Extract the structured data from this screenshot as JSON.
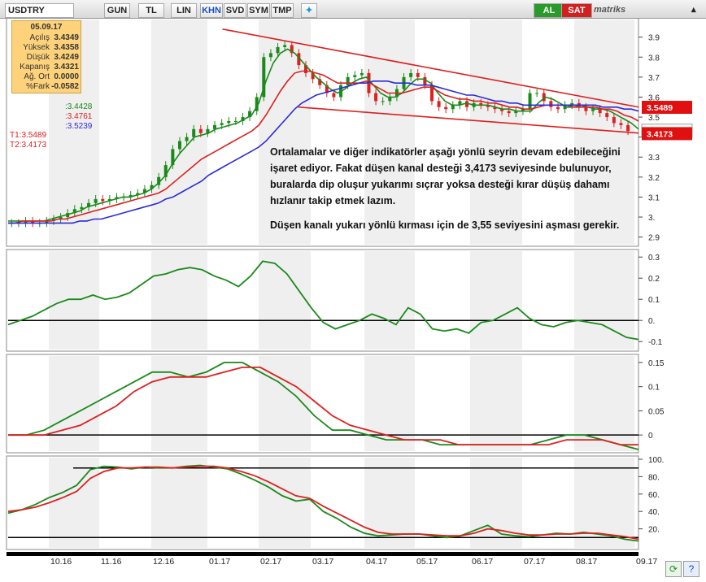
{
  "toolbar": {
    "symbol": "USDTRY",
    "buttons": [
      "GUN",
      "TL",
      "LIN",
      "KHN",
      "SVD",
      "SYM",
      "TMP"
    ],
    "active_button": "KHN",
    "buy_label": "AL",
    "sell_label": "SAT",
    "brand": "matriks"
  },
  "info_box": {
    "date": "05.09.17",
    "rows": [
      {
        "k": "Açılış",
        "v": "3.4349"
      },
      {
        "k": "Yüksek",
        "v": "3.4358"
      },
      {
        "k": "Düşük",
        "v": "3.4249"
      },
      {
        "k": "Kapanış",
        "v": "3.4321"
      },
      {
        "k": "Ağ. Ort",
        "v": "0.0000"
      },
      {
        "k": "%Fark",
        "v": "-0.0582"
      }
    ]
  },
  "ma_legend": [
    {
      "text": ":3.4428",
      "color": "#1a8a1a"
    },
    {
      "text": ":3.4761",
      "color": "#dd2020"
    },
    {
      "text": ":3.5239",
      "color": "#2a2adc"
    }
  ],
  "trend_legend": [
    {
      "text": "T1:3.5489",
      "color": "#dd2020"
    },
    {
      "text": "T2:3.4173",
      "color": "#dd2020"
    }
  ],
  "annotation": {
    "p1": "Ortalamalar ve diğer indikatörler aşağı yönlü seyrin devam edebileceğini işaret ediyor. Fakat düşen kanal desteği 3,4173 seviyesinde bulunuyor, buralarda dip oluşur yukarımı sıçrar yoksa desteği kırar düşüş dahamı hızlanır takip etmek lazım.",
    "p2": "Düşen kanalı yukarı yönlü kırması için de 3,55 seviyesini aşması gerekir."
  },
  "colors": {
    "up": "#1a8a1a",
    "down": "#dd2020",
    "ma_fast": "#1a8a1a",
    "ma_mid": "#dd2020",
    "ma_slow": "#2a2adc",
    "channel": "#dd2020"
  },
  "chart_data": [
    {
      "type": "line",
      "title": "USDTRY",
      "x_labels": [
        "10.16",
        "11.16",
        "12.16",
        "01.17",
        "02.17",
        "03.17",
        "04.17",
        "05.17",
        "06.17",
        "07.17",
        "08.17",
        "09.17"
      ],
      "ylim": [
        2.87,
        3.98
      ],
      "yticks": [
        2.9,
        3.0,
        3.1,
        3.2,
        3.3,
        3.4,
        3.5,
        3.6,
        3.7,
        3.8,
        3.9
      ],
      "ytick_labels": [
        "2.9",
        "3.",
        "3.1",
        "3.2",
        "3.3",
        "3.4",
        "3.5",
        "3.6",
        "3.7",
        "3.8",
        "3.9"
      ],
      "price_labels": [
        {
          "value": 3.5489,
          "text": "3.5489"
        },
        {
          "value": 3.4321,
          "text": "3.4321"
        },
        {
          "value": 3.4173,
          "text": "3.4173"
        }
      ],
      "close": [
        2.97,
        2.97,
        2.98,
        2.97,
        2.97,
        2.98,
        2.99,
        3.0,
        3.02,
        3.04,
        3.05,
        3.07,
        3.09,
        3.08,
        3.09,
        3.1,
        3.1,
        3.11,
        3.12,
        3.14,
        3.16,
        3.2,
        3.26,
        3.34,
        3.38,
        3.4,
        3.44,
        3.42,
        3.44,
        3.46,
        3.47,
        3.48,
        3.48,
        3.5,
        3.53,
        3.6,
        3.8,
        3.82,
        3.85,
        3.86,
        3.82,
        3.76,
        3.72,
        3.69,
        3.66,
        3.62,
        3.6,
        3.66,
        3.7,
        3.71,
        3.72,
        3.62,
        3.58,
        3.58,
        3.6,
        3.64,
        3.7,
        3.72,
        3.7,
        3.66,
        3.58,
        3.55,
        3.54,
        3.56,
        3.58,
        3.55,
        3.57,
        3.56,
        3.55,
        3.54,
        3.53,
        3.52,
        3.53,
        3.54,
        3.62,
        3.62,
        3.58,
        3.55,
        3.54,
        3.56,
        3.57,
        3.55,
        3.53,
        3.54,
        3.52,
        3.5,
        3.47,
        3.46,
        3.43
      ],
      "series": [
        {
          "name": "MA 1",
          "values": [
            2.98,
            2.98,
            2.98,
            2.98,
            2.98,
            2.98,
            2.99,
            3.0,
            3.01,
            3.02,
            3.03,
            3.05,
            3.06,
            3.07,
            3.08,
            3.09,
            3.1,
            3.1,
            3.11,
            3.12,
            3.14,
            3.17,
            3.21,
            3.27,
            3.32,
            3.36,
            3.4,
            3.41,
            3.42,
            3.44,
            3.45,
            3.46,
            3.47,
            3.49,
            3.51,
            3.57,
            3.68,
            3.77,
            3.82,
            3.84,
            3.82,
            3.78,
            3.74,
            3.7,
            3.67,
            3.64,
            3.62,
            3.64,
            3.67,
            3.69,
            3.7,
            3.66,
            3.62,
            3.6,
            3.6,
            3.62,
            3.66,
            3.69,
            3.69,
            3.67,
            3.62,
            3.58,
            3.56,
            3.56,
            3.57,
            3.56,
            3.56,
            3.56,
            3.55,
            3.54,
            3.54,
            3.53,
            3.53,
            3.53,
            3.57,
            3.6,
            3.59,
            3.57,
            3.55,
            3.55,
            3.56,
            3.55,
            3.54,
            3.54,
            3.53,
            3.51,
            3.49,
            3.47,
            3.44
          ]
        },
        {
          "name": "MA 2",
          "values": [
            2.97,
            2.97,
            2.98,
            2.98,
            2.98,
            2.98,
            2.98,
            2.99,
            2.99,
            3.0,
            3.01,
            3.02,
            3.03,
            3.04,
            3.05,
            3.06,
            3.07,
            3.08,
            3.09,
            3.1,
            3.11,
            3.12,
            3.14,
            3.17,
            3.2,
            3.23,
            3.26,
            3.29,
            3.31,
            3.33,
            3.35,
            3.37,
            3.39,
            3.41,
            3.43,
            3.46,
            3.51,
            3.57,
            3.63,
            3.68,
            3.72,
            3.73,
            3.73,
            3.72,
            3.71,
            3.69,
            3.67,
            3.67,
            3.67,
            3.67,
            3.68,
            3.66,
            3.64,
            3.62,
            3.62,
            3.62,
            3.63,
            3.64,
            3.65,
            3.65,
            3.63,
            3.61,
            3.6,
            3.59,
            3.59,
            3.58,
            3.58,
            3.57,
            3.57,
            3.56,
            3.55,
            3.55,
            3.54,
            3.54,
            3.55,
            3.56,
            3.56,
            3.56,
            3.56,
            3.55,
            3.55,
            3.55,
            3.55,
            3.54,
            3.54,
            3.53,
            3.51,
            3.5,
            3.48
          ]
        },
        {
          "name": "MA 3",
          "values": [
            2.97,
            2.97,
            2.97,
            2.97,
            2.97,
            2.97,
            2.97,
            2.97,
            2.97,
            2.97,
            2.98,
            2.98,
            2.99,
            2.99,
            3.0,
            3.01,
            3.02,
            3.03,
            3.04,
            3.05,
            3.06,
            3.07,
            3.09,
            3.1,
            3.12,
            3.14,
            3.16,
            3.18,
            3.21,
            3.23,
            3.25,
            3.27,
            3.29,
            3.31,
            3.33,
            3.35,
            3.38,
            3.42,
            3.46,
            3.5,
            3.54,
            3.57,
            3.59,
            3.61,
            3.62,
            3.63,
            3.64,
            3.65,
            3.66,
            3.67,
            3.67,
            3.68,
            3.68,
            3.68,
            3.67,
            3.67,
            3.67,
            3.66,
            3.66,
            3.66,
            3.65,
            3.64,
            3.63,
            3.62,
            3.61,
            3.61,
            3.6,
            3.59,
            3.58,
            3.58,
            3.57,
            3.57,
            3.56,
            3.56,
            3.56,
            3.56,
            3.56,
            3.56,
            3.56,
            3.56,
            3.56,
            3.56,
            3.56,
            3.55,
            3.55,
            3.55,
            3.54,
            3.54,
            3.53
          ]
        }
      ],
      "channel": [
        {
          "from": [
            0.34,
            3.94
          ],
          "to": [
            1.0,
            3.55
          ]
        },
        {
          "from": [
            0.46,
            3.55
          ],
          "to": [
            1.0,
            3.42
          ]
        }
      ]
    },
    {
      "type": "line",
      "ylim": [
        -0.13,
        0.32
      ],
      "yticks": [
        -0.1,
        0,
        0.1,
        0.2,
        0.3
      ],
      "ytick_labels": [
        "-0.1",
        "0.",
        "0.1",
        "0.2",
        "0.3"
      ],
      "zero_line": 0,
      "series": [
        {
          "name": "",
          "values": [
            -0.02,
            0.0,
            0.02,
            0.05,
            0.08,
            0.1,
            0.1,
            0.12,
            0.1,
            0.11,
            0.13,
            0.17,
            0.21,
            0.22,
            0.24,
            0.25,
            0.24,
            0.21,
            0.19,
            0.16,
            0.21,
            0.28,
            0.27,
            0.22,
            0.14,
            0.06,
            -0.01,
            -0.04,
            -0.02,
            0.0,
            0.03,
            0.01,
            -0.02,
            0.06,
            0.03,
            -0.04,
            -0.05,
            -0.04,
            -0.06,
            -0.01,
            0.0,
            0.03,
            0.06,
            0.01,
            -0.02,
            -0.03,
            -0.01,
            0.0,
            -0.01,
            -0.02,
            -0.05,
            -0.08,
            -0.09
          ]
        }
      ]
    },
    {
      "type": "line",
      "ylim": [
        -0.03,
        0.16
      ],
      "yticks": [
        0,
        0.05,
        0.1,
        0.15
      ],
      "ytick_labels": [
        "0",
        "0.05",
        "0.1",
        "0.15"
      ],
      "zero_line": 0,
      "series": [
        {
          "name": "",
          "values": [
            0.0,
            0.0,
            0.01,
            0.03,
            0.05,
            0.07,
            0.09,
            0.11,
            0.13,
            0.13,
            0.12,
            0.13,
            0.15,
            0.15,
            0.13,
            0.11,
            0.08,
            0.04,
            0.01,
            0.01,
            0.0,
            -0.01,
            -0.01,
            -0.01,
            -0.02,
            -0.02,
            -0.02,
            -0.02,
            -0.02,
            -0.02,
            -0.01,
            0.0,
            0.0,
            -0.01,
            -0.02,
            -0.03
          ]
        },
        {
          "name": "",
          "values": [
            0.0,
            0.0,
            0.0,
            0.01,
            0.02,
            0.04,
            0.06,
            0.09,
            0.11,
            0.12,
            0.12,
            0.12,
            0.13,
            0.14,
            0.14,
            0.12,
            0.1,
            0.07,
            0.04,
            0.02,
            0.01,
            0.0,
            -0.01,
            -0.01,
            -0.01,
            -0.02,
            -0.02,
            -0.02,
            -0.02,
            -0.02,
            -0.02,
            -0.01,
            -0.01,
            -0.01,
            -0.02,
            -0.02
          ]
        }
      ]
    },
    {
      "type": "line",
      "ylim": [
        0,
        100
      ],
      "yticks": [
        20,
        40,
        60,
        80,
        100
      ],
      "ytick_labels": [
        "20.",
        "40.",
        "60.",
        "80.",
        "100."
      ],
      "hlines": [
        90,
        10
      ],
      "series": [
        {
          "name": "",
          "values": [
            38,
            42,
            48,
            56,
            62,
            70,
            88,
            92,
            91,
            89,
            91,
            90,
            90,
            92,
            93,
            91,
            89,
            83,
            76,
            68,
            58,
            52,
            54,
            40,
            32,
            22,
            15,
            12,
            13,
            14,
            14,
            12,
            10,
            12,
            18,
            24,
            14,
            12,
            11,
            13,
            15,
            14,
            16,
            14,
            12,
            8,
            6
          ]
        },
        {
          "name": "",
          "values": [
            40,
            42,
            45,
            50,
            56,
            63,
            78,
            86,
            90,
            90,
            91,
            91,
            90,
            91,
            92,
            92,
            90,
            86,
            81,
            74,
            66,
            58,
            55,
            46,
            38,
            30,
            22,
            16,
            14,
            14,
            14,
            13,
            12,
            12,
            15,
            20,
            18,
            15,
            13,
            13,
            14,
            14,
            15,
            15,
            13,
            11,
            8
          ]
        }
      ]
    }
  ]
}
